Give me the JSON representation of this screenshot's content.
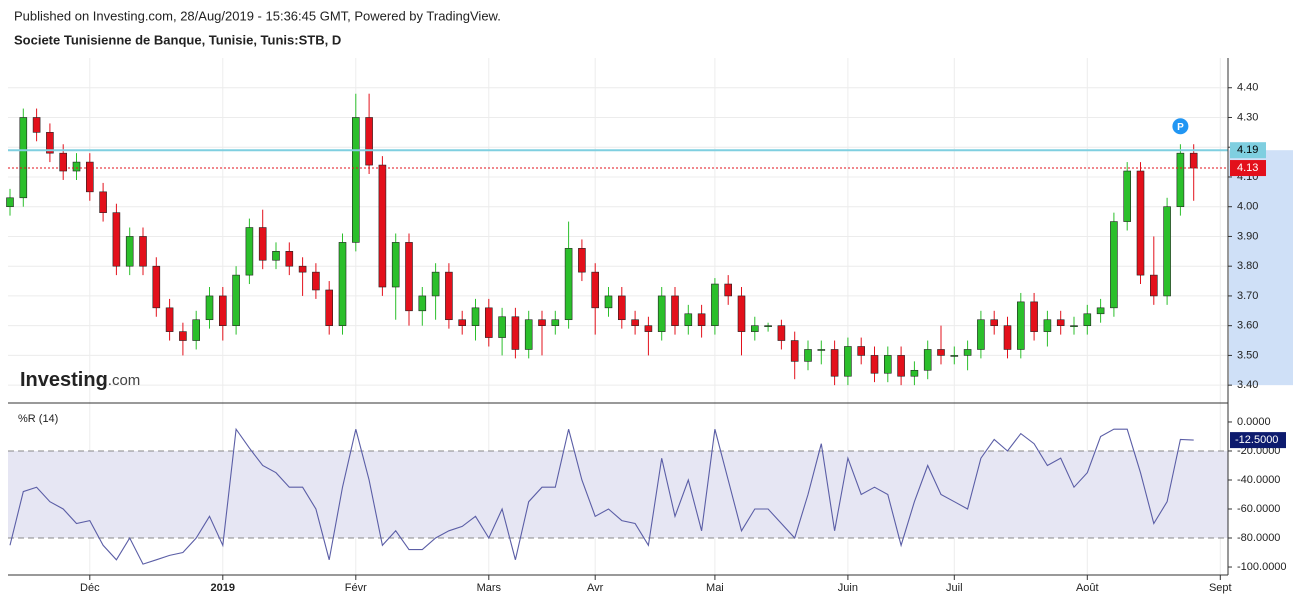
{
  "header": {
    "published": "Published on Investing.com, 28/Aug/2019 - 15:36:45 GMT, Powered by TradingView.",
    "instrument": "Societe Tunisienne de Banque, Tunisie, Tunis:STB, D"
  },
  "logo": {
    "brand": "Investing",
    "suffix": ".com"
  },
  "chart_data": [
    {
      "type": "candlestick",
      "categories": [
        null,
        null,
        null,
        null,
        null,
        null,
        "Déc",
        null,
        null,
        null,
        null,
        null,
        null,
        null,
        null,
        null,
        "2019",
        null,
        null,
        null,
        null,
        null,
        null,
        null,
        null,
        null,
        "Févr",
        null,
        null,
        null,
        null,
        null,
        null,
        null,
        null,
        null,
        "Mars",
        null,
        null,
        null,
        null,
        null,
        null,
        null,
        "Avr",
        null,
        null,
        null,
        null,
        null,
        null,
        null,
        null,
        "Mai",
        null,
        null,
        null,
        null,
        null,
        null,
        null,
        null,
        null,
        "Juin",
        null,
        null,
        null,
        null,
        null,
        null,
        null,
        "Juil",
        null,
        null,
        null,
        null,
        null,
        null,
        null,
        null,
        null,
        "Août",
        null,
        null,
        null,
        null,
        null,
        null,
        null,
        null,
        null,
        "Sept"
      ],
      "open": [
        4.0,
        4.03,
        4.3,
        4.25,
        4.18,
        4.12,
        4.15,
        4.05,
        3.98,
        3.8,
        3.9,
        3.8,
        3.66,
        3.58,
        3.55,
        3.62,
        3.7,
        3.6,
        3.77,
        3.93,
        3.82,
        3.85,
        3.8,
        3.78,
        3.72,
        3.6,
        3.88,
        4.3,
        4.14,
        3.73,
        3.88,
        3.65,
        3.7,
        3.78,
        3.62,
        3.6,
        3.66,
        3.56,
        3.63,
        3.52,
        3.62,
        3.6,
        3.62,
        3.86,
        3.78,
        3.66,
        3.7,
        3.62,
        3.6,
        3.58,
        3.7,
        3.6,
        3.64,
        3.6,
        3.74,
        3.7,
        3.58,
        3.6,
        3.6,
        3.55,
        3.48,
        3.52,
        3.52,
        3.43,
        3.53,
        3.5,
        3.44,
        3.5,
        3.43,
        3.45,
        3.52,
        3.5,
        3.5,
        3.52,
        3.62,
        3.6,
        3.52,
        3.68,
        3.58,
        3.62,
        3.6,
        3.6,
        3.64,
        3.66,
        3.95,
        4.12,
        3.77,
        3.7,
        4.0,
        4.18,
        null,
        null
      ],
      "high": [
        4.06,
        4.33,
        4.33,
        4.28,
        4.21,
        4.18,
        4.18,
        4.08,
        4.01,
        3.93,
        3.93,
        3.83,
        3.69,
        3.61,
        3.65,
        3.73,
        3.73,
        3.8,
        3.96,
        3.99,
        3.88,
        3.88,
        3.83,
        3.81,
        3.75,
        3.91,
        4.38,
        4.38,
        4.17,
        3.91,
        3.91,
        3.73,
        3.81,
        3.81,
        3.65,
        3.69,
        3.69,
        3.66,
        3.66,
        3.65,
        3.65,
        3.65,
        3.95,
        3.89,
        3.81,
        3.73,
        3.73,
        3.65,
        3.63,
        3.73,
        3.73,
        3.67,
        3.67,
        3.76,
        3.77,
        3.73,
        3.63,
        3.61,
        3.62,
        3.58,
        3.55,
        3.55,
        3.55,
        3.56,
        3.56,
        3.53,
        3.53,
        3.53,
        3.48,
        3.55,
        3.6,
        3.53,
        3.55,
        3.65,
        3.65,
        3.63,
        3.71,
        3.71,
        3.65,
        3.65,
        3.63,
        3.67,
        3.69,
        3.98,
        4.15,
        4.15,
        3.9,
        4.03,
        4.21,
        4.21,
        null,
        null
      ],
      "low": [
        3.97,
        4.0,
        4.22,
        4.15,
        4.09,
        4.09,
        4.02,
        3.95,
        3.77,
        3.77,
        3.77,
        3.63,
        3.55,
        3.5,
        3.52,
        3.59,
        3.55,
        3.57,
        3.74,
        3.79,
        3.79,
        3.77,
        3.7,
        3.69,
        3.57,
        3.57,
        3.85,
        4.11,
        3.7,
        3.62,
        3.6,
        3.6,
        3.62,
        3.59,
        3.57,
        3.55,
        3.53,
        3.5,
        3.49,
        3.49,
        3.5,
        3.57,
        3.59,
        3.75,
        3.57,
        3.63,
        3.59,
        3.57,
        3.5,
        3.55,
        3.57,
        3.57,
        3.56,
        3.57,
        3.67,
        3.5,
        3.55,
        3.58,
        3.52,
        3.42,
        3.45,
        3.47,
        3.4,
        3.4,
        3.47,
        3.41,
        3.41,
        3.4,
        3.4,
        3.42,
        3.47,
        3.47,
        3.45,
        3.49,
        3.57,
        3.49,
        3.49,
        3.55,
        3.53,
        3.57,
        3.57,
        3.57,
        3.61,
        3.63,
        3.92,
        3.74,
        3.67,
        3.67,
        3.97,
        4.02,
        null,
        null
      ],
      "close": [
        4.03,
        4.3,
        4.25,
        4.18,
        4.12,
        4.15,
        4.05,
        3.98,
        3.8,
        3.9,
        3.8,
        3.66,
        3.58,
        3.55,
        3.62,
        3.7,
        3.6,
        3.77,
        3.93,
        3.82,
        3.85,
        3.8,
        3.78,
        3.72,
        3.6,
        3.88,
        4.3,
        4.14,
        3.73,
        3.88,
        3.65,
        3.7,
        3.78,
        3.62,
        3.6,
        3.66,
        3.56,
        3.63,
        3.52,
        3.62,
        3.6,
        3.62,
        3.86,
        3.78,
        3.66,
        3.7,
        3.62,
        3.6,
        3.58,
        3.7,
        3.6,
        3.64,
        3.6,
        3.74,
        3.7,
        3.58,
        3.6,
        3.6,
        3.55,
        3.48,
        3.52,
        3.52,
        3.43,
        3.53,
        3.5,
        3.44,
        3.5,
        3.43,
        3.45,
        3.52,
        3.5,
        3.5,
        3.52,
        3.62,
        3.6,
        3.52,
        3.68,
        3.58,
        3.62,
        3.6,
        3.6,
        3.64,
        3.66,
        3.95,
        4.12,
        3.77,
        3.7,
        4.0,
        4.18,
        4.13,
        null,
        null
      ],
      "up_color": "#2bbf2b",
      "down_color": "#e3101b",
      "ylim": [
        3.34,
        4.5
      ],
      "yticks": [
        {
          "value": 3.4,
          "label": "3.40"
        },
        {
          "value": 3.5,
          "label": "3.50"
        },
        {
          "value": 3.6,
          "label": "3.60"
        },
        {
          "value": 3.7,
          "label": "3.70"
        },
        {
          "value": 3.8,
          "label": "3.80"
        },
        {
          "value": 3.9,
          "label": "3.90"
        },
        {
          "value": 4.0,
          "label": "4.00"
        },
        {
          "value": 4.1,
          "label": "4.10"
        },
        {
          "value": 4.2,
          "label": "4.20"
        },
        {
          "value": 4.3,
          "label": "4.30"
        },
        {
          "value": 4.4,
          "label": "4.40"
        }
      ],
      "grid": true,
      "last_value": {
        "value": 4.13,
        "label": "4.13",
        "color": "#e3101b"
      },
      "level": {
        "value": 4.19,
        "label": "4.19",
        "color": "#7fcfe0"
      },
      "highlight_range": [
        3.4,
        4.19
      ],
      "marker": {
        "label": "P",
        "index": 88,
        "color": "#2196f3"
      }
    },
    {
      "type": "line",
      "title": "%R (14)",
      "color": "#5b5ea6",
      "values": [
        -85,
        -48,
        -45,
        -55,
        -60,
        -70,
        -68,
        -85,
        -95,
        -80,
        -98,
        -95,
        -92,
        -90,
        -80,
        -65,
        -85,
        -5,
        -18,
        -30,
        -35,
        -45,
        -45,
        -60,
        -95,
        -45,
        -5,
        -40,
        -85,
        -75,
        -88,
        -88,
        -80,
        -75,
        -72,
        -65,
        -80,
        -60,
        -95,
        -55,
        -45,
        -45,
        -5,
        -40,
        -65,
        -60,
        -68,
        -70,
        -85,
        -25,
        -65,
        -40,
        -75,
        -5,
        -40,
        -75,
        -60,
        -60,
        -70,
        -80,
        -50,
        -15,
        -75,
        -25,
        -50,
        -45,
        -50,
        -85,
        -55,
        -30,
        -50,
        -55,
        -60,
        -25,
        -12,
        -20,
        -8,
        -15,
        -30,
        -25,
        -45,
        -35,
        -10,
        -5,
        -5,
        -35,
        -70,
        -55,
        -12,
        -12.5,
        null,
        null
      ],
      "ylim": [
        -105.5,
        11.7
      ],
      "yticks": [
        {
          "value": 0,
          "label": "0.0000"
        },
        {
          "value": -20,
          "label": "-20.0000"
        },
        {
          "value": -40,
          "label": "-40.0000"
        },
        {
          "value": -60,
          "label": "-60.0000"
        },
        {
          "value": -80,
          "label": "-80.0000"
        },
        {
          "value": -100,
          "label": "-100.0000"
        }
      ],
      "band": [
        -80,
        -20
      ],
      "band_color": "#e6e6f3",
      "last_value": {
        "value": -12.5,
        "label": "-12.5000",
        "color": "#0d1b6e"
      }
    }
  ]
}
